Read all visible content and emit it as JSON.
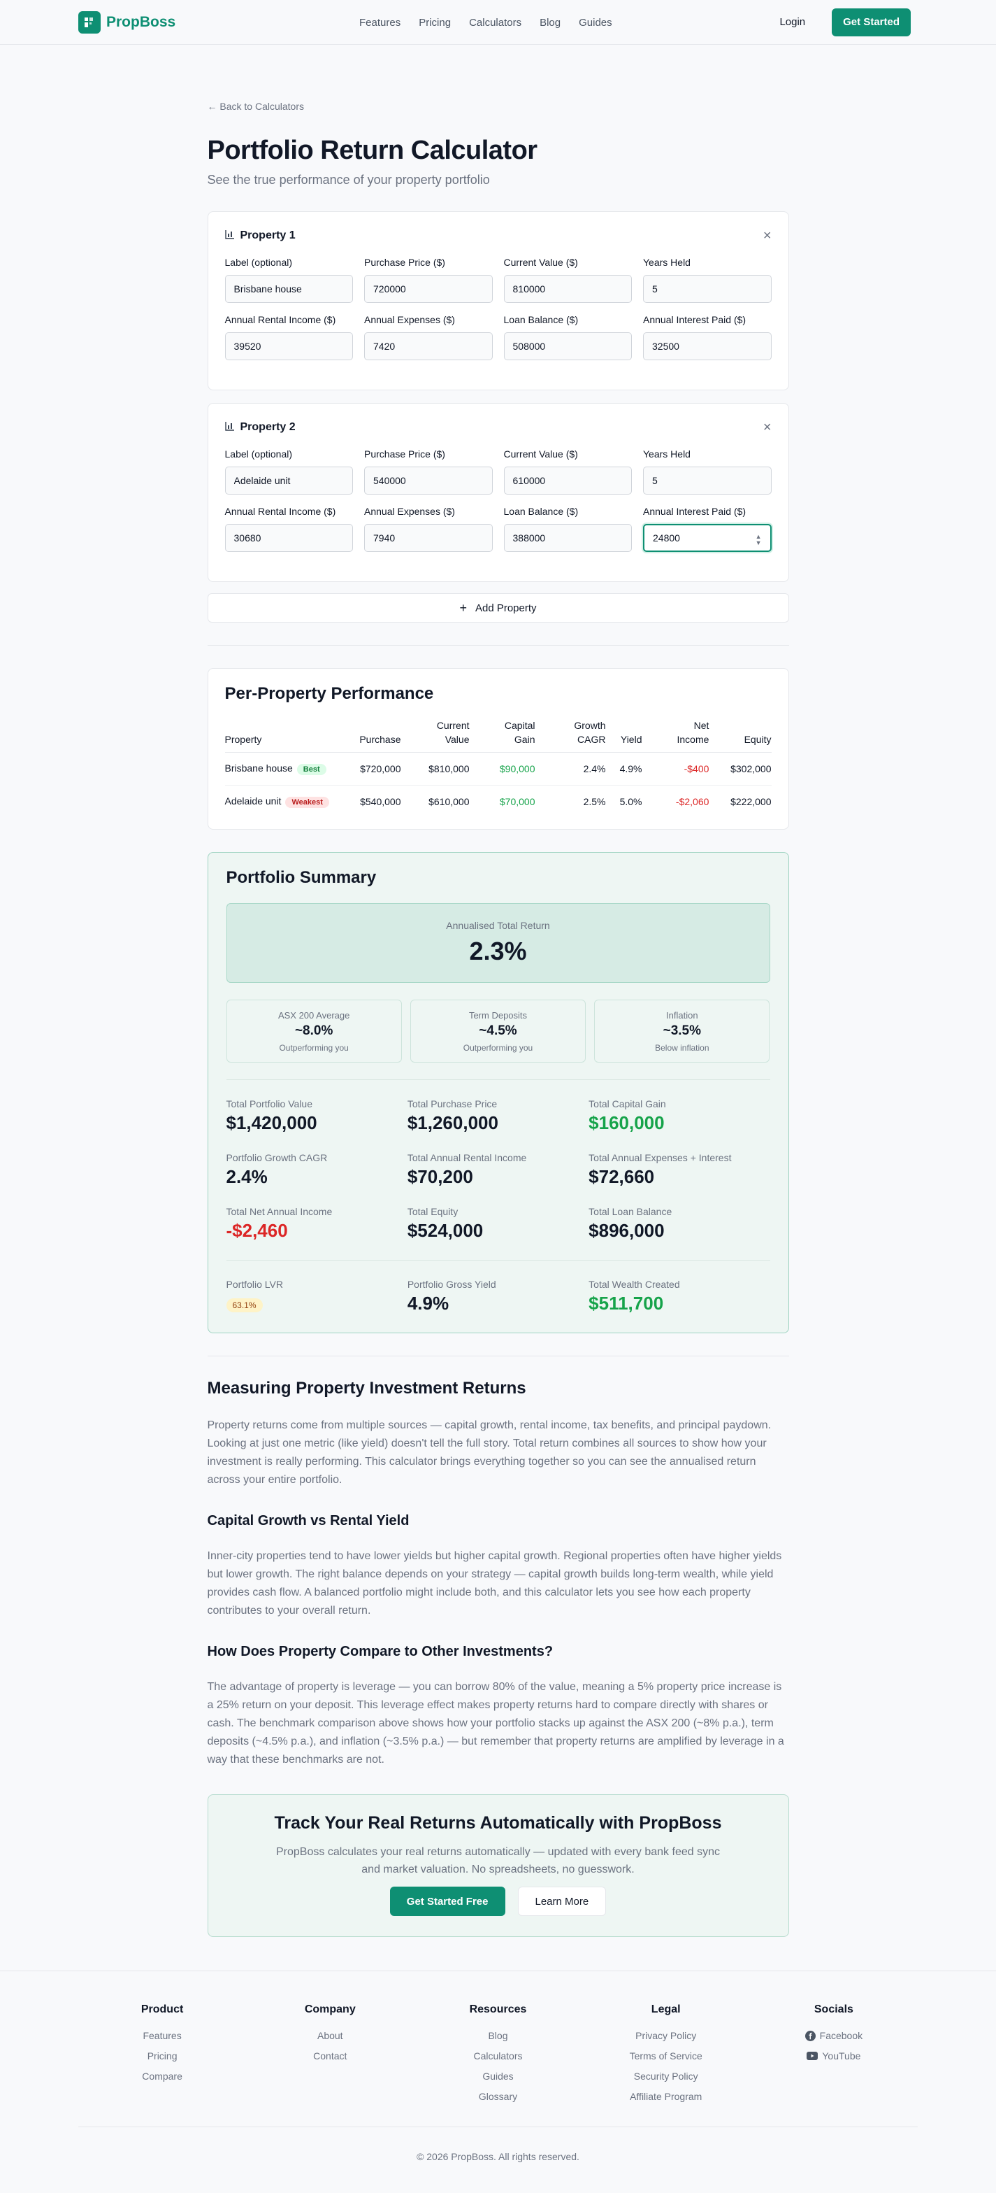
{
  "nav": {
    "brand": "PropBoss",
    "links": [
      "Features",
      "Pricing",
      "Calculators",
      "Blog",
      "Guides"
    ],
    "login": "Login",
    "cta": "Get Started"
  },
  "page": {
    "back": "← Back to Calculators",
    "title": "Portfolio Return Calculator",
    "subtitle": "See the true performance of your property portfolio"
  },
  "field_labels": {
    "label": "Label (optional)",
    "purchase": "Purchase Price ($)",
    "current": "Current Value ($)",
    "years": "Years Held",
    "rent": "Annual Rental Income ($)",
    "expenses": "Annual Expenses ($)",
    "loan": "Loan Balance ($)",
    "interest": "Annual Interest Paid ($)"
  },
  "properties": [
    {
      "title": "Property 1",
      "label": "Brisbane house",
      "purchase": "720000",
      "current": "810000",
      "years": "5",
      "rent": "39520",
      "expenses": "7420",
      "loan": "508000",
      "interest": "32500"
    },
    {
      "title": "Property 2",
      "label": "Adelaide unit",
      "purchase": "540000",
      "current": "610000",
      "years": "5",
      "rent": "30680",
      "expenses": "7940",
      "loan": "388000",
      "interest": "24800"
    }
  ],
  "add_property": "Add Property",
  "performance": {
    "title": "Per-Property Performance",
    "headers": [
      "Property",
      "Purchase",
      "Current Value",
      "Capital Gain",
      "Growth CAGR",
      "Yield",
      "Net Income",
      "Equity"
    ],
    "rows": [
      {
        "name": "Brisbane house",
        "badge": "Best",
        "purchase": "$720,000",
        "current": "$810,000",
        "gain": "$90,000",
        "cagr": "2.4%",
        "yield": "4.9%",
        "net": "-$400",
        "equity": "$302,000"
      },
      {
        "name": "Adelaide unit",
        "badge": "Weakest",
        "purchase": "$540,000",
        "current": "$610,000",
        "gain": "$70,000",
        "cagr": "2.5%",
        "yield": "5.0%",
        "net": "-$2,060",
        "equity": "$222,000"
      }
    ]
  },
  "summary": {
    "title": "Portfolio Summary",
    "hero_label": "Annualised Total Return",
    "hero_value": "2.3%",
    "benchmarks": [
      {
        "label": "ASX 200 Average",
        "value": "~8.0%",
        "note": "Outperforming you"
      },
      {
        "label": "Term Deposits",
        "value": "~4.5%",
        "note": "Outperforming you"
      },
      {
        "label": "Inflation",
        "value": "~3.5%",
        "note": "Below inflation"
      }
    ],
    "stats": [
      {
        "label": "Total Portfolio Value",
        "value": "$1,420,000"
      },
      {
        "label": "Total Purchase Price",
        "value": "$1,260,000"
      },
      {
        "label": "Total Capital Gain",
        "value": "$160,000"
      },
      {
        "label": "Portfolio Growth CAGR",
        "value": "2.4%"
      },
      {
        "label": "Total Annual Rental Income",
        "value": "$70,200"
      },
      {
        "label": "Total Annual Expenses + Interest",
        "value": "$72,660"
      },
      {
        "label": "Total Net Annual Income",
        "value": "-$2,460"
      },
      {
        "label": "Total Equity",
        "value": "$524,000"
      },
      {
        "label": "Total Loan Balance",
        "value": "$896,000"
      }
    ],
    "lvr_label": "Portfolio LVR",
    "lvr_value": "63.1%",
    "gross_yield_label": "Portfolio Gross Yield",
    "gross_yield_value": "4.9%",
    "wealth_label": "Total Wealth Created",
    "wealth_value": "$511,700",
    "colors": {
      "positive": "#16a34a",
      "negative": "#dc2626",
      "accent": "#0e8f73"
    }
  },
  "article": {
    "h2": "Measuring Property Investment Returns",
    "p1": "Property returns come from multiple sources — capital growth, rental income, tax benefits, and principal paydown. Looking at just one metric (like yield) doesn't tell the full story. Total return combines all sources to show how your investment is really performing. This calculator brings everything together so you can see the annualised return across your entire portfolio.",
    "h3a": "Capital Growth vs Rental Yield",
    "p2": "Inner-city properties tend to have lower yields but higher capital growth. Regional properties often have higher yields but lower growth. The right balance depends on your strategy — capital growth builds long-term wealth, while yield provides cash flow. A balanced portfolio might include both, and this calculator lets you see how each property contributes to your overall return.",
    "h3b": "How Does Property Compare to Other Investments?",
    "p3": "The advantage of property is leverage — you can borrow 80% of the value, meaning a 5% property price increase is a 25% return on your deposit. This leverage effect makes property returns hard to compare directly with shares or cash. The benchmark comparison above shows how your portfolio stacks up against the ASX 200 (~8% p.a.), term deposits (~4.5% p.a.), and inflation (~3.5% p.a.) — but remember that property returns are amplified by leverage in a way that these benchmarks are not."
  },
  "cta": {
    "title": "Track Your Real Returns Automatically with PropBoss",
    "text": "PropBoss calculates your real returns automatically — updated with every bank feed sync and market valuation. No spreadsheets, no guesswork.",
    "primary": "Get Started Free",
    "secondary": "Learn More"
  },
  "footer": {
    "cols": [
      {
        "title": "Product",
        "links": [
          "Features",
          "Pricing",
          "Compare"
        ]
      },
      {
        "title": "Company",
        "links": [
          "About",
          "Contact"
        ]
      },
      {
        "title": "Resources",
        "links": [
          "Blog",
          "Calculators",
          "Guides",
          "Glossary"
        ]
      },
      {
        "title": "Legal",
        "links": [
          "Privacy Policy",
          "Terms of Service",
          "Security Policy",
          "Affiliate Program"
        ]
      }
    ],
    "socials_title": "Socials",
    "socials": [
      {
        "name": "Facebook",
        "icon": "facebook-icon"
      },
      {
        "name": "YouTube",
        "icon": "youtube-icon"
      }
    ],
    "copyright": "© 2026 PropBoss. All rights reserved."
  }
}
